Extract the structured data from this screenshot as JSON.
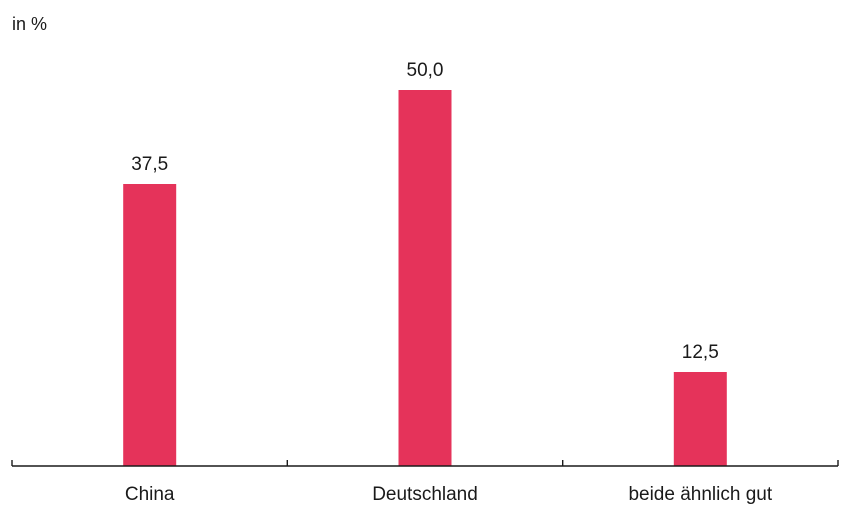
{
  "chart_data": {
    "type": "bar",
    "unit_label": "in %",
    "categories": [
      "China",
      "Deutschland",
      "beide ähnlich gut"
    ],
    "values": [
      37.5,
      50.0,
      12.5
    ],
    "value_labels": [
      "37,5",
      "50,0",
      "12,5"
    ],
    "ylim": [
      0,
      50
    ],
    "grid": false,
    "bar_color": "#e5335a",
    "text_color": "#1a1a1a"
  }
}
